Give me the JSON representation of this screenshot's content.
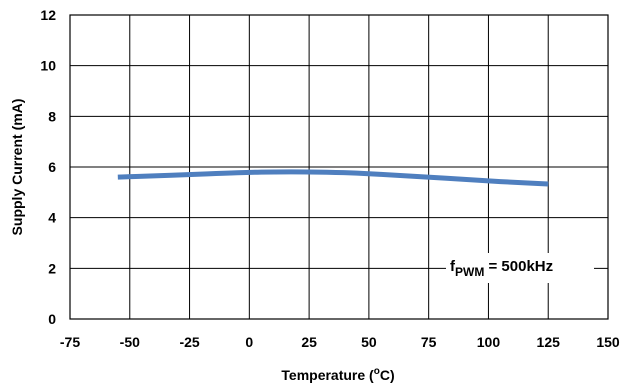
{
  "chart_data": {
    "type": "line",
    "title": "",
    "xlabel_main": "Temperature (",
    "xlabel_unit": "o",
    "xlabel_tail": "C)",
    "ylabel": "Supply Current  (mA)",
    "xlim": [
      -75,
      150
    ],
    "ylim": [
      0,
      12
    ],
    "x_ticks": [
      -75,
      -50,
      -25,
      0,
      25,
      50,
      75,
      100,
      125,
      150
    ],
    "y_ticks": [
      0,
      2,
      4,
      6,
      8,
      10,
      12
    ],
    "grid": true,
    "series": [
      {
        "color": "#4F7FBF",
        "x": [
          -55,
          -40,
          -25,
          -10,
          0,
          10,
          25,
          40,
          50,
          60,
          75,
          90,
          100,
          110,
          125
        ],
        "y": [
          5.6,
          5.65,
          5.7,
          5.76,
          5.79,
          5.81,
          5.81,
          5.78,
          5.74,
          5.68,
          5.6,
          5.51,
          5.45,
          5.4,
          5.33
        ]
      }
    ],
    "annotation": {
      "main": "f",
      "sub": "PWM",
      "tail": " = 500kHz"
    }
  }
}
